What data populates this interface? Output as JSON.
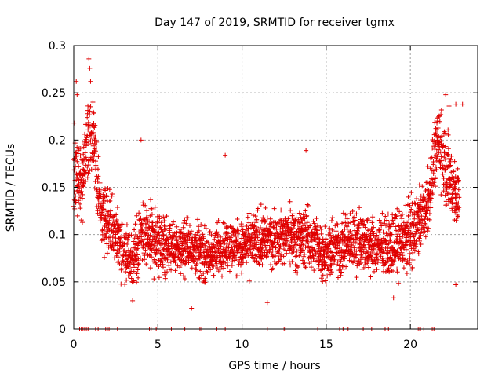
{
  "chart_data": {
    "type": "scatter",
    "title": "Day 147 of 2019, SRMTID for receiver tgmx",
    "xlabel": "GPS time / hours",
    "ylabel": "SRMTID / TECUs",
    "xlim": [
      0,
      24
    ],
    "ylim": [
      0,
      0.3
    ],
    "xticks": [
      0,
      5,
      10,
      15,
      20
    ],
    "xtick_labels": [
      "0",
      "5",
      "10",
      "15",
      "20"
    ],
    "yticks": [
      0,
      0.05,
      0.1,
      0.15,
      0.2,
      0.25,
      0.3
    ],
    "ytick_labels": [
      "0",
      "0.05",
      "0.1",
      "0.15",
      "0.2",
      "0.25",
      "0.3"
    ],
    "grid": true,
    "marker": "+",
    "color": "#e00000",
    "envelope": [
      {
        "x": 0.0,
        "center": 0.17,
        "spread": 0.05
      },
      {
        "x": 0.5,
        "center": 0.15,
        "spread": 0.04
      },
      {
        "x": 0.8,
        "center": 0.21,
        "spread": 0.05
      },
      {
        "x": 1.2,
        "center": 0.2,
        "spread": 0.04
      },
      {
        "x": 1.6,
        "center": 0.12,
        "spread": 0.03
      },
      {
        "x": 2.0,
        "center": 0.11,
        "spread": 0.04
      },
      {
        "x": 2.5,
        "center": 0.1,
        "spread": 0.04
      },
      {
        "x": 3.0,
        "center": 0.085,
        "spread": 0.035
      },
      {
        "x": 3.5,
        "center": 0.07,
        "spread": 0.03
      },
      {
        "x": 4.0,
        "center": 0.1,
        "spread": 0.04
      },
      {
        "x": 5.0,
        "center": 0.09,
        "spread": 0.035
      },
      {
        "x": 6.0,
        "center": 0.085,
        "spread": 0.03
      },
      {
        "x": 7.0,
        "center": 0.09,
        "spread": 0.03
      },
      {
        "x": 8.0,
        "center": 0.075,
        "spread": 0.03
      },
      {
        "x": 9.0,
        "center": 0.09,
        "spread": 0.03
      },
      {
        "x": 10.0,
        "center": 0.085,
        "spread": 0.03
      },
      {
        "x": 11.0,
        "center": 0.095,
        "spread": 0.035
      },
      {
        "x": 12.0,
        "center": 0.095,
        "spread": 0.03
      },
      {
        "x": 13.0,
        "center": 0.1,
        "spread": 0.035
      },
      {
        "x": 14.0,
        "center": 0.095,
        "spread": 0.035
      },
      {
        "x": 15.0,
        "center": 0.08,
        "spread": 0.03
      },
      {
        "x": 16.0,
        "center": 0.09,
        "spread": 0.035
      },
      {
        "x": 17.0,
        "center": 0.095,
        "spread": 0.035
      },
      {
        "x": 18.0,
        "center": 0.085,
        "spread": 0.03
      },
      {
        "x": 19.0,
        "center": 0.09,
        "spread": 0.035
      },
      {
        "x": 20.0,
        "center": 0.1,
        "spread": 0.04
      },
      {
        "x": 21.0,
        "center": 0.13,
        "spread": 0.04
      },
      {
        "x": 21.6,
        "center": 0.2,
        "spread": 0.04
      },
      {
        "x": 22.0,
        "center": 0.18,
        "spread": 0.05
      },
      {
        "x": 22.5,
        "center": 0.15,
        "spread": 0.04
      },
      {
        "x": 23.0,
        "center": 0.14,
        "spread": 0.05
      }
    ],
    "outliers": [
      {
        "x": 0.9,
        "y": 0.286
      },
      {
        "x": 0.95,
        "y": 0.276
      },
      {
        "x": 1.0,
        "y": 0.262
      },
      {
        "x": 0.15,
        "y": 0.262
      },
      {
        "x": 0.2,
        "y": 0.248
      },
      {
        "x": 22.1,
        "y": 0.248
      },
      {
        "x": 22.3,
        "y": 0.236
      },
      {
        "x": 22.7,
        "y": 0.238
      },
      {
        "x": 23.1,
        "y": 0.238
      },
      {
        "x": 9.0,
        "y": 0.184
      },
      {
        "x": 13.8,
        "y": 0.189
      },
      {
        "x": 4.0,
        "y": 0.2
      },
      {
        "x": 3.5,
        "y": 0.03
      },
      {
        "x": 7.0,
        "y": 0.022
      },
      {
        "x": 11.5,
        "y": 0.028
      },
      {
        "x": 19.0,
        "y": 0.033
      },
      {
        "x": 22.7,
        "y": 0.047
      }
    ],
    "zero_points_x": [
      0.35,
      0.45,
      0.55,
      0.65,
      0.75,
      0.85,
      1.3,
      1.45,
      1.9,
      2.0,
      2.1,
      2.6,
      4.5,
      4.6,
      4.9,
      5.8,
      6.6,
      7.5,
      7.6,
      8.5,
      9.0,
      11.5,
      12.5,
      12.6,
      14.5,
      15.8,
      16.0,
      16.3,
      17.2,
      17.7,
      18.5,
      18.7,
      20.4,
      20.5,
      20.6,
      20.8,
      21.3,
      21.4
    ]
  }
}
